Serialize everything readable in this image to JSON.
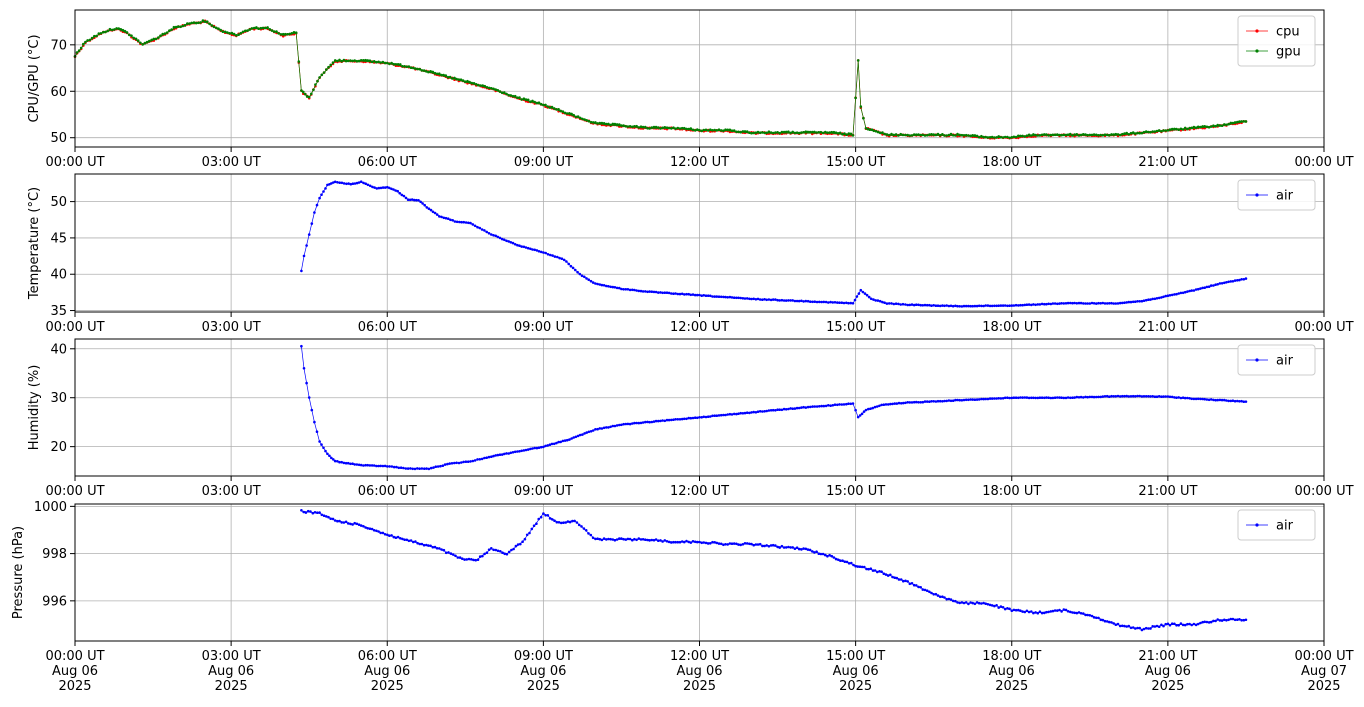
{
  "chart_data": [
    {
      "type": "line",
      "ylabel": "CPU/GPU (°C)",
      "xlim": [
        "00:00",
        "24:00"
      ],
      "ylim": [
        48,
        77.5
      ],
      "yticks": [
        50,
        60,
        70
      ],
      "xtick_labels": [
        "00:00 UT",
        "03:00 UT",
        "06:00 UT",
        "09:00 UT",
        "12:00 UT",
        "15:00 UT",
        "18:00 UT",
        "21:00 UT",
        "00:00 UT"
      ],
      "grid": true,
      "legend": "top-right",
      "series": [
        {
          "name": "cpu",
          "color": "#ff0000",
          "x": [
            0.0,
            0.2,
            0.5,
            0.8,
            1.0,
            1.3,
            1.6,
            1.9,
            2.2,
            2.5,
            2.8,
            3.1,
            3.4,
            3.7,
            4.0,
            4.25,
            4.35,
            4.5,
            4.7,
            5.0,
            5.5,
            6.0,
            6.5,
            7.0,
            7.5,
            8.0,
            8.5,
            9.0,
            9.5,
            10.0,
            10.5,
            11.0,
            11.5,
            12.0,
            12.5,
            13.0,
            13.5,
            14.0,
            14.5,
            14.95,
            15.05,
            15.1,
            15.2,
            15.35,
            15.6,
            16.0,
            16.5,
            17.0,
            17.5,
            18.0,
            18.5,
            19.0,
            19.5,
            20.0,
            20.5,
            21.0,
            21.5,
            22.0,
            22.5
          ],
          "y": [
            67.5,
            70.5,
            72.5,
            73.5,
            72.5,
            70,
            71.5,
            73.5,
            74.5,
            75,
            73,
            72,
            73.5,
            73.5,
            72,
            72.5,
            60,
            58.5,
            63,
            66.5,
            66.5,
            66,
            65,
            63.5,
            62,
            60.5,
            58.5,
            57,
            55,
            53,
            52.5,
            52,
            52,
            51.5,
            51.5,
            51,
            51,
            51,
            51,
            50.5,
            66.5,
            56.5,
            52,
            51.5,
            50.5,
            50.5,
            50.5,
            50.5,
            50,
            50,
            50.5,
            50.5,
            50.5,
            50.5,
            51,
            51.5,
            52,
            52.5,
            53.5
          ]
        },
        {
          "name": "gpu",
          "color": "#008000",
          "x": [
            0.0,
            0.2,
            0.5,
            0.8,
            1.0,
            1.3,
            1.6,
            1.9,
            2.2,
            2.5,
            2.8,
            3.1,
            3.4,
            3.7,
            4.0,
            4.25,
            4.35,
            4.5,
            4.7,
            5.0,
            5.5,
            6.0,
            6.5,
            7.0,
            7.5,
            8.0,
            8.5,
            9.0,
            9.5,
            10.0,
            10.5,
            11.0,
            11.5,
            12.0,
            12.5,
            13.0,
            13.5,
            14.0,
            14.5,
            14.95,
            15.05,
            15.1,
            15.2,
            15.35,
            15.6,
            16.0,
            16.5,
            17.0,
            17.5,
            18.0,
            18.5,
            19.0,
            19.5,
            20.0,
            20.5,
            21.0,
            21.5,
            22.0,
            22.5
          ],
          "y": [
            67.5,
            70.5,
            72.5,
            73.5,
            72.5,
            70,
            71.5,
            73.5,
            74.5,
            75,
            73,
            72,
            73.5,
            73.5,
            72,
            72.5,
            60,
            58.5,
            63,
            66.5,
            66.5,
            66,
            65,
            63.5,
            62,
            60.5,
            58.5,
            57,
            55,
            53,
            52.5,
            52,
            52,
            51.5,
            51.5,
            51,
            51,
            51,
            51,
            50.5,
            66.5,
            56.5,
            52,
            51.5,
            50.5,
            50.5,
            50.5,
            50.5,
            50,
            50,
            50.5,
            50.5,
            50.5,
            50.5,
            51,
            51.5,
            52,
            52.5,
            53.5
          ]
        }
      ]
    },
    {
      "type": "line",
      "ylabel": "Temperature (°C)",
      "xlim": [
        "00:00",
        "24:00"
      ],
      "ylim": [
        34.8,
        53.8
      ],
      "yticks": [
        35,
        40,
        45,
        50
      ],
      "xtick_labels": [
        "00:00 UT",
        "03:00 UT",
        "06:00 UT",
        "09:00 UT",
        "12:00 UT",
        "15:00 UT",
        "18:00 UT",
        "21:00 UT",
        "00:00 UT"
      ],
      "grid": true,
      "legend": "top-right",
      "series": [
        {
          "name": "air",
          "color": "#0000ff",
          "x": [
            4.35,
            4.4,
            4.5,
            4.6,
            4.7,
            4.85,
            5.0,
            5.3,
            5.5,
            5.8,
            6.0,
            6.2,
            6.4,
            6.6,
            6.8,
            7.0,
            7.3,
            7.6,
            8.0,
            8.5,
            9.0,
            9.4,
            9.7,
            10.0,
            10.5,
            11.0,
            12.0,
            13.0,
            14.0,
            14.95,
            15.1,
            15.3,
            15.6,
            16.0,
            17.0,
            18.0,
            19.0,
            20.0,
            20.5,
            21.0,
            21.5,
            22.0,
            22.5
          ],
          "y": [
            40.5,
            42.5,
            45.5,
            48.5,
            50.5,
            52.3,
            52.7,
            52.4,
            52.7,
            51.8,
            52,
            51.4,
            50.3,
            50.2,
            49,
            48,
            47.3,
            47,
            45.5,
            44,
            43,
            42,
            40,
            38.7,
            38,
            37.6,
            37.1,
            36.6,
            36.3,
            36,
            37.8,
            36.6,
            36,
            35.8,
            35.6,
            35.7,
            36,
            36,
            36.3,
            37,
            37.8,
            38.7,
            39.4
          ]
        }
      ]
    },
    {
      "type": "line",
      "ylabel": "Humidity (%)",
      "xlim": [
        "00:00",
        "24:00"
      ],
      "ylim": [
        14,
        42
      ],
      "yticks": [
        20,
        30,
        40
      ],
      "xtick_labels": [
        "00:00 UT",
        "03:00 UT",
        "06:00 UT",
        "09:00 UT",
        "12:00 UT",
        "15:00 UT",
        "18:00 UT",
        "21:00 UT",
        "00:00 UT"
      ],
      "grid": true,
      "legend": "top-right",
      "series": [
        {
          "name": "air",
          "color": "#0000ff",
          "x": [
            4.35,
            4.4,
            4.5,
            4.6,
            4.7,
            4.85,
            5.0,
            5.5,
            6.0,
            6.4,
            6.8,
            7.2,
            7.6,
            8.0,
            8.5,
            9.0,
            9.5,
            10.0,
            10.5,
            11.0,
            12.0,
            13.0,
            14.0,
            14.95,
            15.05,
            15.2,
            15.5,
            16.0,
            17.0,
            18.0,
            19.0,
            20.0,
            20.5,
            21.0,
            21.5,
            22.0,
            22.5
          ],
          "y": [
            40.5,
            36,
            30,
            25,
            21,
            18.5,
            17,
            16.2,
            16,
            15.5,
            15.5,
            16.5,
            17,
            18,
            19,
            20,
            21.5,
            23.5,
            24.5,
            25,
            26,
            27,
            28,
            28.8,
            26,
            27.5,
            28.5,
            29,
            29.5,
            30,
            30,
            30.3,
            30.3,
            30.2,
            29.8,
            29.5,
            29.2
          ]
        }
      ]
    },
    {
      "type": "line",
      "ylabel": "Pressure (hPa)",
      "xlim": [
        "2025-08-06 00:00",
        "2025-08-07 00:00"
      ],
      "ylim": [
        994.3,
        1000.1
      ],
      "yticks": [
        996,
        998,
        1000
      ],
      "xtick_labels": [
        [
          "00:00 UT",
          "Aug 06",
          "2025"
        ],
        [
          "03:00 UT",
          "Aug 06",
          "2025"
        ],
        [
          "06:00 UT",
          "Aug 06",
          "2025"
        ],
        [
          "09:00 UT",
          "Aug 06",
          "2025"
        ],
        [
          "12:00 UT",
          "Aug 06",
          "2025"
        ],
        [
          "15:00 UT",
          "Aug 06",
          "2025"
        ],
        [
          "18:00 UT",
          "Aug 06",
          "2025"
        ],
        [
          "21:00 UT",
          "Aug 06",
          "2025"
        ],
        [
          "00:00 UT",
          "Aug 07",
          "2025"
        ]
      ],
      "grid": true,
      "legend": "top-right",
      "series": [
        {
          "name": "air",
          "color": "#0000ff",
          "x": [
            4.35,
            4.7,
            5.0,
            5.5,
            6.0,
            6.5,
            7.0,
            7.4,
            7.7,
            8.0,
            8.3,
            8.6,
            9.0,
            9.3,
            9.6,
            10.0,
            10.5,
            11.0,
            11.5,
            12.0,
            12.5,
            13.0,
            13.5,
            14.0,
            14.5,
            15.0,
            15.5,
            16.0,
            16.5,
            17.0,
            17.5,
            18.0,
            18.5,
            19.0,
            19.5,
            20.0,
            20.5,
            21.0,
            21.5,
            22.0,
            22.5
          ],
          "y": [
            999.8,
            999.7,
            999.4,
            999.2,
            998.8,
            998.5,
            998.2,
            997.8,
            997.7,
            998.2,
            998,
            998.5,
            999.7,
            999.3,
            999.4,
            998.6,
            998.6,
            998.6,
            998.5,
            998.5,
            998.4,
            998.4,
            998.3,
            998.2,
            997.9,
            997.5,
            997.2,
            996.8,
            996.3,
            995.9,
            995.9,
            995.6,
            995.5,
            995.6,
            995.4,
            995,
            994.8,
            995,
            995,
            995.2,
            995.2
          ]
        }
      ]
    }
  ]
}
